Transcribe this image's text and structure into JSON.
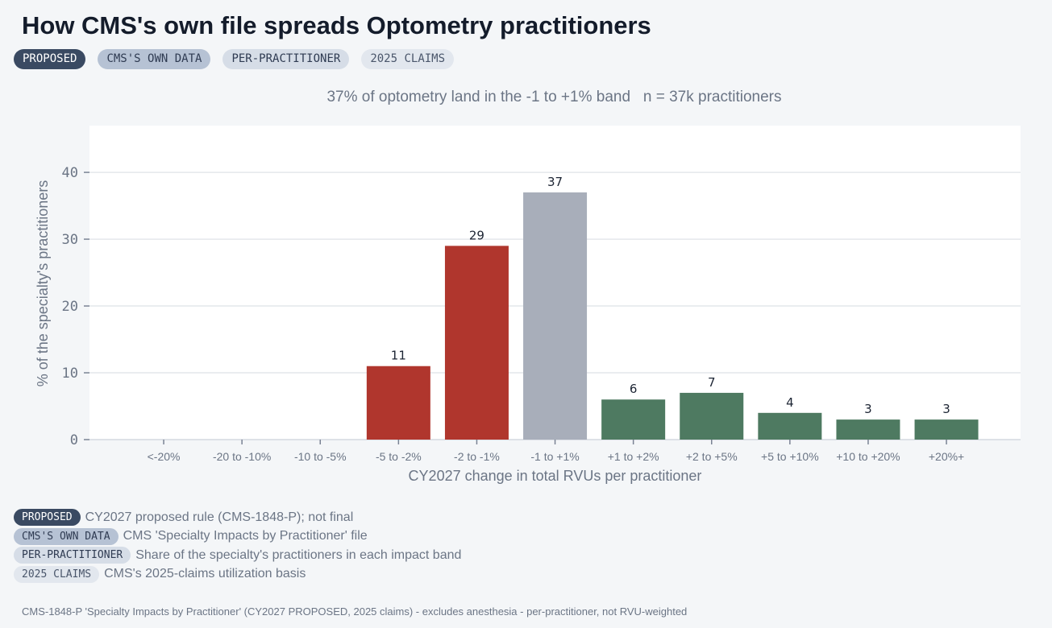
{
  "title": "How CMS's own file spreads Optometry practitioners",
  "tags": [
    "PROPOSED",
    "CMS'S OWN DATA",
    "PER-PRACTITIONER",
    "2025 CLAIMS"
  ],
  "subtitle": "37% of optometry land in the -1 to +1% band   n = 37k practitioners",
  "legend": [
    {
      "tag": "PROPOSED",
      "text": "CY2027 proposed rule (CMS-1848-P); not final"
    },
    {
      "tag": "CMS'S OWN DATA",
      "text": "CMS 'Specialty Impacts by Practitioner' file"
    },
    {
      "tag": "PER-PRACTITIONER",
      "text": "Share of the specialty's practitioners in each impact band"
    },
    {
      "tag": "2025 CLAIMS",
      "text": "CMS's 2025-claims utilization basis"
    }
  ],
  "footer": "CMS-1848-P 'Specialty Impacts by Practitioner' (CY2027 PROPOSED, 2025 claims) - excludes anesthesia - per-practitioner, not RVU-weighted",
  "colors": {
    "negative": "#b0362d",
    "neutral": "#a8aeba",
    "positive": "#4e7a61",
    "plot_bg": "#ffffff",
    "grid": "#e4e7ec",
    "axis_text": "#6b7585"
  },
  "chart_data": {
    "type": "bar",
    "categories": [
      "<-20%",
      "-20 to -10%",
      "-10 to -5%",
      "-5 to -2%",
      "-2 to -1%",
      "-1 to +1%",
      "+1 to +2%",
      "+2 to +5%",
      "+5 to +10%",
      "+10 to +20%",
      "+20%+"
    ],
    "values": [
      0,
      0,
      0,
      11,
      29,
      37,
      6,
      7,
      4,
      3,
      3
    ],
    "bar_colors": [
      "negative",
      "negative",
      "negative",
      "negative",
      "negative",
      "neutral",
      "positive",
      "positive",
      "positive",
      "positive",
      "positive"
    ],
    "labeled": [
      false,
      false,
      false,
      true,
      true,
      true,
      true,
      true,
      true,
      true,
      true
    ],
    "xlabel": "CY2027 change in total RVUs per practitioner",
    "ylabel": "% of the specialty's practitioners",
    "yticks": [
      0,
      10,
      20,
      30,
      40
    ],
    "ylim": [
      0,
      47
    ],
    "grid": true,
    "legend": "none"
  }
}
